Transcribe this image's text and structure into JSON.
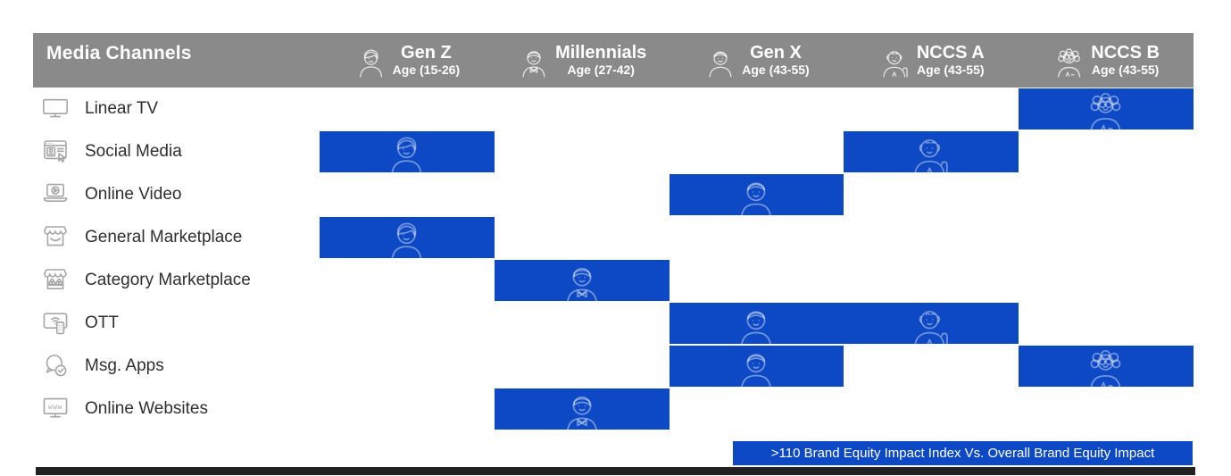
{
  "table": {
    "header": {
      "label": "Media Channels",
      "columns": [
        {
          "name": "Gen Z",
          "age": "Age (15-26)",
          "icon": "gen-z-persona-icon"
        },
        {
          "name": "Millennials",
          "age": "Age (27-42)",
          "icon": "millennials-persona-icon"
        },
        {
          "name": "Gen X",
          "age": "Age (43-55)",
          "icon": "gen-x-persona-icon"
        },
        {
          "name": "NCCS A",
          "age": "Age (43-55)",
          "icon": "nccs-a-persona-icon"
        },
        {
          "name": "NCCS B",
          "age": "Age (43-55)",
          "icon": "nccs-b-persona-icon"
        }
      ]
    },
    "rows": [
      {
        "label": "Linear TV",
        "icon": "tv-icon"
      },
      {
        "label": "Social Media",
        "icon": "social-media-icon"
      },
      {
        "label": "Online Video",
        "icon": "online-video-icon"
      },
      {
        "label": "General Marketplace",
        "icon": "general-marketplace-icon"
      },
      {
        "label": "Category Marketplace",
        "icon": "category-marketplace-icon"
      },
      {
        "label": "OTT",
        "icon": "ott-icon"
      },
      {
        "label": "Msg. Apps",
        "icon": "msg-apps-icon"
      },
      {
        "label": "Online Websites",
        "icon": "online-websites-icon"
      }
    ]
  },
  "legend": {
    "label": ">110 Brand Equity Impact Index Vs. Overall Brand Equity Impact"
  },
  "colors": {
    "highlight_blue": "#0d49c4",
    "header_gray": "#8b8a8a",
    "bottom_bar": "#212121"
  },
  "chart_data": {
    "type": "heatmap",
    "title": "",
    "rows": [
      "Linear TV",
      "Social Media",
      "Online Video",
      "General Marketplace",
      "Category Marketplace",
      "OTT",
      "Msg. Apps",
      "Online Websites"
    ],
    "columns": [
      "Gen Z Age (15-26)",
      "Millennials Age (27-42)",
      "Gen X Age (43-55)",
      "NCCS A Age (43-55)",
      "NCCS B Age (43-55)"
    ],
    "values": [
      [
        0,
        0,
        0,
        0,
        1
      ],
      [
        1,
        0,
        0,
        1,
        0
      ],
      [
        0,
        0,
        1,
        0,
        0
      ],
      [
        1,
        0,
        0,
        0,
        0
      ],
      [
        0,
        1,
        0,
        0,
        0
      ],
      [
        0,
        0,
        1,
        1,
        0
      ],
      [
        0,
        0,
        1,
        0,
        1
      ],
      [
        0,
        1,
        0,
        0,
        0
      ]
    ],
    "value_meaning": "1 = cell highlighted blue (>110 Brand Equity Impact Index Vs. Overall Brand Equity Impact)",
    "legend": ">110 Brand Equity Impact Index Vs. Overall Brand Equity Impact",
    "legend_position": "bottom-right",
    "grid": false
  }
}
